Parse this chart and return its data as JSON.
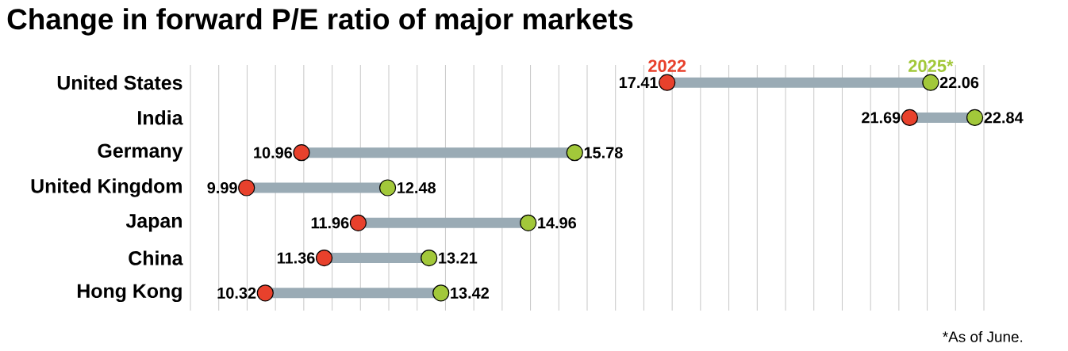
{
  "chart_data": {
    "type": "scatter",
    "orientation": "horizontal",
    "title": "Change in forward P/E ratio of major markets",
    "categories": [
      "United States",
      "India",
      "Germany",
      "United Kingdom",
      "Japan",
      "China",
      "Hong Kong"
    ],
    "series": [
      {
        "name": "2022",
        "color": "#e8412c",
        "values": [
          17.41,
          21.69,
          10.96,
          9.99,
          11.96,
          11.36,
          10.32
        ]
      },
      {
        "name": "2025*",
        "color": "#a2c83a",
        "values": [
          22.06,
          22.84,
          15.78,
          12.48,
          14.96,
          13.21,
          13.42
        ]
      }
    ],
    "xlim": [
      9,
      23
    ],
    "xticks": [
      {
        "value": 9,
        "label": null
      },
      {
        "value": 9.5,
        "label": null
      },
      {
        "value": 10,
        "label": null
      },
      {
        "value": 10.5,
        "label": null
      },
      {
        "value": 11,
        "label": null
      },
      {
        "value": 11.5,
        "label": null
      },
      {
        "value": 12,
        "label": null
      },
      {
        "value": 12.5,
        "label": null
      },
      {
        "value": 13,
        "label": null
      },
      {
        "value": 13.5,
        "label": null
      },
      {
        "value": 14,
        "label": null
      },
      {
        "value": 14.5,
        "label": null
      },
      {
        "value": 15,
        "label": null
      },
      {
        "value": 15.5,
        "label": null
      },
      {
        "value": 16,
        "label": null
      },
      {
        "value": 16.5,
        "label": null
      },
      {
        "value": 17,
        "label": null
      },
      {
        "value": 17.5,
        "label": null
      },
      {
        "value": 18,
        "label": null
      },
      {
        "value": 18.5,
        "label": null
      },
      {
        "value": 19,
        "label": null
      },
      {
        "value": 19.5,
        "label": null
      },
      {
        "value": 20,
        "label": null
      },
      {
        "value": 20.5,
        "label": null
      },
      {
        "value": 21,
        "label": null
      },
      {
        "value": 21.5,
        "label": null
      },
      {
        "value": 22,
        "label": null
      },
      {
        "value": 22.5,
        "label": null
      },
      {
        "value": 23,
        "label": null
      }
    ],
    "grid": "x",
    "tick_labels": "y",
    "data_labels": true,
    "marker": "circle",
    "annotations": [
      "*As of June."
    ]
  }
}
